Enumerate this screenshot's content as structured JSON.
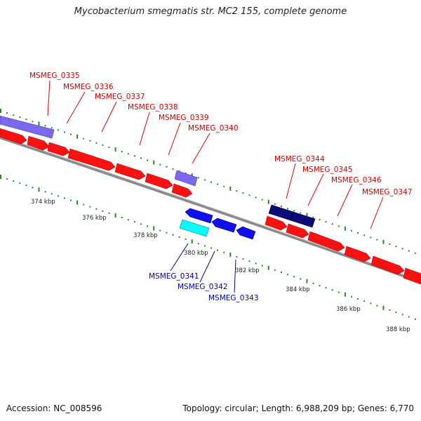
{
  "title": "Mycobacterium smegmatis str. MC2 155, complete genome",
  "footer": {
    "accession": "Accession: NC_008596",
    "summary": "Topology: circular; Length: 6,988,209 bp; Genes: 6,770"
  },
  "colors": {
    "forward_gene": "#ff0000",
    "forward_label": "#cc0000",
    "reverse_gene": "#0000ee",
    "reverse_label": "#0000aa",
    "light_purple": "#7b68ee",
    "dark_navy": "#000080",
    "cyan": "#00ffff",
    "backbone": "#808080",
    "tick": "#228b22"
  },
  "scale": {
    "unit": "kbp",
    "ticks": [
      {
        "value": 374,
        "label": "374 kbp"
      },
      {
        "value": 376,
        "label": "376 kbp"
      },
      {
        "value": 378,
        "label": "378 kbp"
      },
      {
        "value": 380,
        "label": "380 kbp"
      },
      {
        "value": 382,
        "label": "382 kbp"
      },
      {
        "value": 384,
        "label": "384 kbp"
      },
      {
        "value": 386,
        "label": "386 kbp"
      },
      {
        "value": 388,
        "label": "388 kbp"
      }
    ]
  },
  "forward_labels": [
    "MSMEG_0335",
    "MSMEG_0336",
    "MSMEG_0337",
    "MSMEG_0338",
    "MSMEG_0339",
    "MSMEG_0340",
    "MSMEG_0344",
    "MSMEG_0345",
    "MSMEG_0346",
    "MSMEG_0347"
  ],
  "reverse_labels": [
    "MSMEG_0341",
    "MSMEG_0342",
    "MSMEG_0343"
  ]
}
